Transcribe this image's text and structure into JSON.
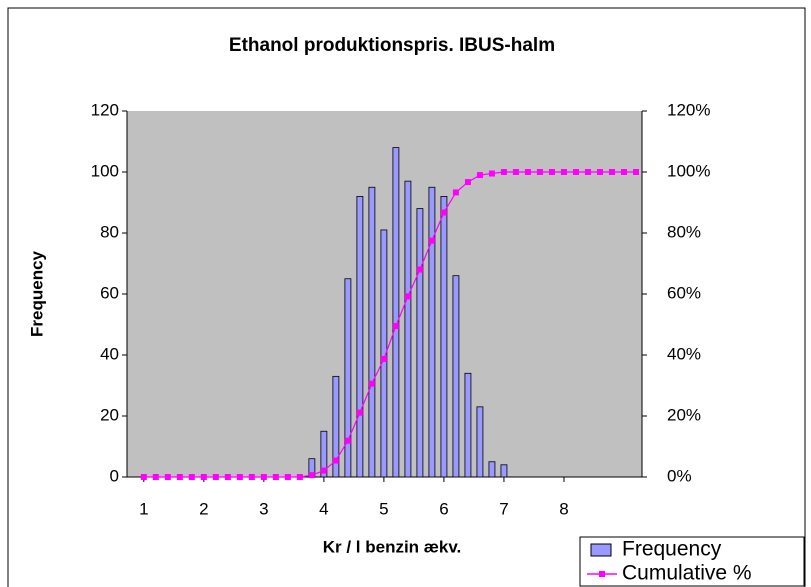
{
  "chart_data": {
    "type": "bar",
    "title": "Ethanol produktionspris. IBUS-halm",
    "x_label": "Kr / l benzin ækv.",
    "y_label": "Frequency",
    "x": [
      1.0,
      1.2,
      1.4,
      1.6,
      1.8,
      2.0,
      2.2,
      2.4,
      2.6,
      2.8,
      3.0,
      3.2,
      3.4,
      3.6,
      3.8,
      4.0,
      4.2,
      4.4,
      4.6,
      4.8,
      5.0,
      5.2,
      5.4,
      5.6,
      5.8,
      6.0,
      6.2,
      6.4,
      6.6,
      6.8,
      7.0,
      7.2,
      7.4,
      7.6,
      7.8,
      8.0,
      8.2,
      8.4,
      8.6,
      8.8,
      9.0,
      9.2
    ],
    "series": [
      {
        "name": "Frequency",
        "type": "bar",
        "color": "#9999ff",
        "values": [
          0,
          0,
          0,
          0,
          0,
          0,
          0,
          0,
          0,
          0,
          0,
          0,
          0,
          0,
          6,
          15,
          33,
          65,
          92,
          95,
          81,
          108,
          97,
          88,
          95,
          92,
          66,
          34,
          23,
          5,
          4,
          0,
          0,
          0,
          0,
          0,
          0,
          0,
          0,
          0,
          0,
          0
        ]
      },
      {
        "name": "Cumulative %",
        "type": "line",
        "axis": "y2",
        "color": "#ff00ff",
        "values": [
          0,
          0,
          0,
          0,
          0,
          0,
          0,
          0,
          0,
          0,
          0,
          0,
          0,
          0,
          0.6,
          2.1,
          5.4,
          11.9,
          21.1,
          30.6,
          38.7,
          49.5,
          59.2,
          68.0,
          77.5,
          86.7,
          93.3,
          96.7,
          99.0,
          99.5,
          100,
          100,
          100,
          100,
          100,
          100,
          100,
          100,
          100,
          100,
          100,
          100
        ]
      }
    ],
    "xlim": [
      0.72,
      9.3
    ],
    "xticks": [
      1,
      2,
      3,
      4,
      5,
      6,
      7,
      8
    ],
    "ylim": [
      0,
      120
    ],
    "yticks": [
      0,
      20,
      40,
      60,
      80,
      100,
      120
    ],
    "y2lim": [
      0,
      120
    ],
    "y2ticks": [
      {
        "value": 0,
        "label": "0%"
      },
      {
        "value": 20,
        "label": "20%"
      },
      {
        "value": 40,
        "label": "40%"
      },
      {
        "value": 60,
        "label": "60%"
      },
      {
        "value": 80,
        "label": "80%"
      },
      {
        "value": 100,
        "label": "100%"
      },
      {
        "value": 120,
        "label": "120%"
      }
    ],
    "legend": "bottom-right"
  }
}
